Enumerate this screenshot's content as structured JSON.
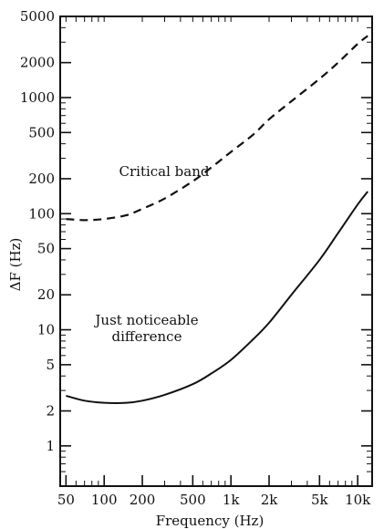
{
  "chart_data": {
    "type": "line",
    "xlabel": "Frequency (Hz)",
    "ylabel": "ΔF (Hz)",
    "x_scale": "log",
    "y_scale": "log",
    "xlim": [
      45,
      13000
    ],
    "ylim": [
      0.45,
      5000
    ],
    "x_ticks": [
      {
        "value": 50,
        "label": "50"
      },
      {
        "value": 100,
        "label": "100"
      },
      {
        "value": 200,
        "label": "200"
      },
      {
        "value": 500,
        "label": "500"
      },
      {
        "value": 1000,
        "label": "1k"
      },
      {
        "value": 2000,
        "label": "2k"
      },
      {
        "value": 5000,
        "label": "5k"
      },
      {
        "value": 10000,
        "label": "10k"
      }
    ],
    "y_ticks": [
      {
        "value": 1,
        "label": "1"
      },
      {
        "value": 2,
        "label": "2"
      },
      {
        "value": 5,
        "label": "5"
      },
      {
        "value": 10,
        "label": "10"
      },
      {
        "value": 20,
        "label": "20"
      },
      {
        "value": 50,
        "label": "50"
      },
      {
        "value": 100,
        "label": "100"
      },
      {
        "value": 200,
        "label": "200"
      },
      {
        "value": 500,
        "label": "500"
      },
      {
        "value": 1000,
        "label": "1000"
      },
      {
        "value": 2000,
        "label": "2000"
      },
      {
        "value": 5000,
        "label": "5000"
      }
    ],
    "series": [
      {
        "name": "Critical band",
        "style": "dashed",
        "x": [
          50,
          70,
          100,
          150,
          200,
          300,
          500,
          700,
          1000,
          1500,
          2000,
          3000,
          5000,
          7000,
          10000,
          12000
        ],
        "y": [
          90,
          88,
          90,
          97,
          110,
          135,
          190,
          250,
          340,
          480,
          650,
          930,
          1450,
          2000,
          2900,
          3400
        ]
      },
      {
        "name": "Just noticeable difference",
        "style": "solid",
        "x": [
          50,
          70,
          100,
          150,
          200,
          300,
          500,
          700,
          1000,
          1500,
          2000,
          3000,
          5000,
          7000,
          10000,
          12000
        ],
        "y": [
          2.7,
          2.45,
          2.35,
          2.35,
          2.45,
          2.75,
          3.4,
          4.2,
          5.5,
          8.3,
          11.5,
          20,
          40,
          68,
          120,
          155
        ]
      }
    ],
    "annotations": [
      {
        "id": "critical-band",
        "lines": [
          "Critical band"
        ]
      },
      {
        "id": "jnd",
        "lines": [
          "Just noticeable",
          "difference"
        ]
      }
    ]
  }
}
